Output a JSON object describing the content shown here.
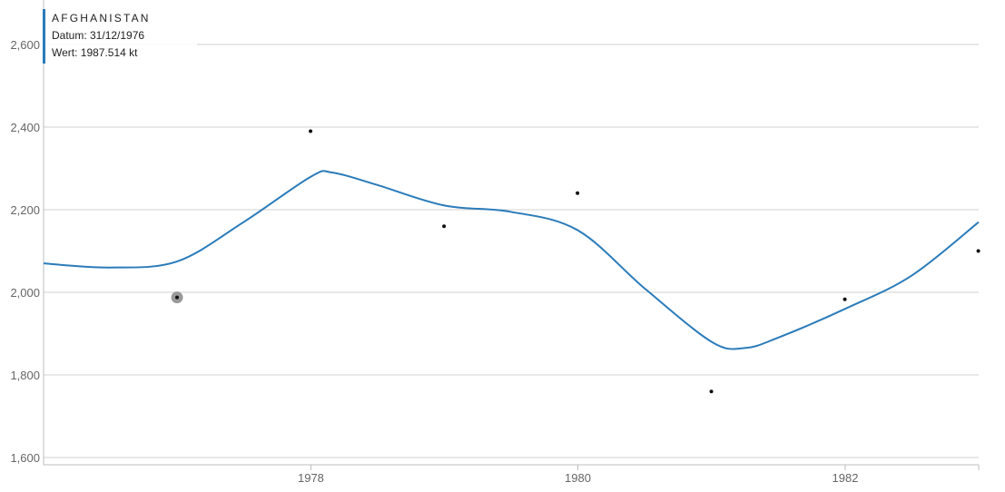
{
  "chart_data": {
    "type": "scatter",
    "x": [
      "1976-12-31",
      "1977-12-31",
      "1978-12-31",
      "1979-12-31",
      "1980-12-31",
      "1981-12-31",
      "1982-12-31"
    ],
    "y": [
      1987.514,
      2390,
      2160,
      2240,
      1760,
      1983,
      2100
    ],
    "trend": {
      "x": [
        "1976-01-01",
        "1976-07-01",
        "1977-01-01",
        "1977-07-01",
        "1978-01-01",
        "1978-03-01",
        "1978-07-01",
        "1979-01-01",
        "1979-07-01",
        "1980-01-01",
        "1980-07-01",
        "1981-01-01",
        "1981-04-01",
        "1981-07-01",
        "1982-01-01",
        "1982-07-01",
        "1983-01-01"
      ],
      "y": [
        2070,
        2060,
        2075,
        2170,
        2280,
        2290,
        2260,
        2210,
        2195,
        2150,
        2010,
        1880,
        1865,
        1890,
        1960,
        2040,
        2170
      ]
    },
    "xlim": [
      "1976-01-01",
      "1983-01-01"
    ],
    "ylim": [
      1600,
      2600
    ],
    "yticks": [
      1600,
      1800,
      2000,
      2200,
      2400,
      2600
    ],
    "ytick_labels": [
      "1,600",
      "1,800",
      "2,000",
      "2,200",
      "2,400",
      "2,600"
    ],
    "xticks": [
      "1978-01-01",
      "1980-01-01",
      "1982-01-01"
    ],
    "xtick_labels": [
      "1978",
      "1980",
      "1982"
    ],
    "grid": true,
    "highlight_index": 0,
    "colors": {
      "trend": "#2b7bba",
      "point": "#111111",
      "highlight": "#999999"
    }
  },
  "tooltip": {
    "title": "AFGHANISTAN",
    "date_line": "Datum: 31/12/1976",
    "value_line": "Wert: 1987.514 kt"
  }
}
